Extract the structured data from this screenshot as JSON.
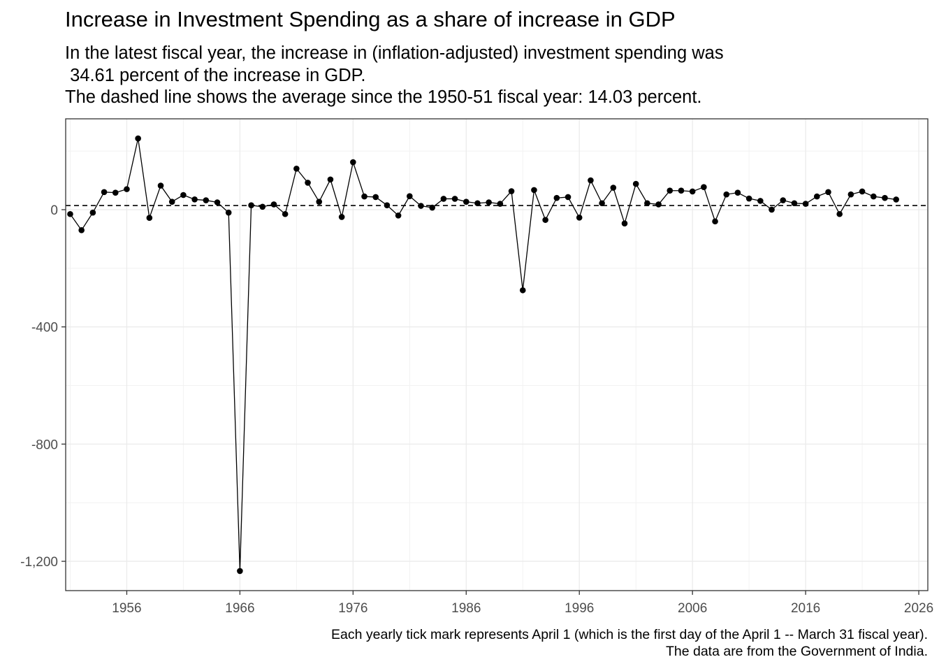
{
  "chart_data": {
    "type": "line",
    "title": "Increase in Investment Spending as a share of increase in GDP",
    "subtitle": "In the latest fiscal year, the increase in (inflation-adjusted) investment spending was\n 34.61 percent of the increase in GDP.\nThe dashed line shows the average since the 1950-51 fiscal year: 14.03 percent.",
    "caption": "Each yearly tick mark represents April 1 (which is the first day of the April 1 -- March 31 fiscal year).\nThe data are from the Government of India.",
    "xlabel": "",
    "ylabel": "",
    "x_ticks": [
      "1956",
      "1966",
      "1976",
      "1986",
      "1996",
      "2006",
      "2016",
      "2026"
    ],
    "y_ticks": [
      "-1,200",
      "-800",
      "-400",
      "0"
    ],
    "xlim": [
      1950.6,
      2026.8
    ],
    "ylim": [
      -1300,
      310
    ],
    "average_line": 14.03,
    "latest_value": 34.61,
    "grid": true,
    "series": [
      {
        "points": [
          [
            1951,
            -15
          ],
          [
            1952,
            -70
          ],
          [
            1953,
            -10
          ],
          [
            1954,
            60
          ],
          [
            1955,
            58
          ],
          [
            1956,
            70
          ],
          [
            1957,
            243
          ],
          [
            1958,
            -28
          ],
          [
            1959,
            82
          ],
          [
            1960,
            27
          ],
          [
            1961,
            50
          ],
          [
            1962,
            35
          ],
          [
            1963,
            32
          ],
          [
            1964,
            25
          ],
          [
            1965,
            -10
          ],
          [
            1966,
            -1233
          ],
          [
            1967,
            15
          ],
          [
            1968,
            10
          ],
          [
            1969,
            18
          ],
          [
            1970,
            -15
          ],
          [
            1971,
            140
          ],
          [
            1972,
            92
          ],
          [
            1973,
            27
          ],
          [
            1974,
            103
          ],
          [
            1975,
            -25
          ],
          [
            1976,
            162
          ],
          [
            1977,
            45
          ],
          [
            1978,
            43
          ],
          [
            1979,
            15
          ],
          [
            1980,
            -20
          ],
          [
            1981,
            46
          ],
          [
            1982,
            13
          ],
          [
            1983,
            7
          ],
          [
            1984,
            37
          ],
          [
            1985,
            37
          ],
          [
            1986,
            27
          ],
          [
            1987,
            22
          ],
          [
            1988,
            25
          ],
          [
            1989,
            20
          ],
          [
            1990,
            63
          ],
          [
            1991,
            -275
          ],
          [
            1992,
            67
          ],
          [
            1993,
            -35
          ],
          [
            1994,
            40
          ],
          [
            1995,
            43
          ],
          [
            1996,
            -27
          ],
          [
            1997,
            100
          ],
          [
            1998,
            22
          ],
          [
            1999,
            75
          ],
          [
            2000,
            -47
          ],
          [
            2001,
            88
          ],
          [
            2002,
            22
          ],
          [
            2003,
            18
          ],
          [
            2004,
            65
          ],
          [
            2005,
            65
          ],
          [
            2006,
            62
          ],
          [
            2007,
            77
          ],
          [
            2008,
            -40
          ],
          [
            2009,
            52
          ],
          [
            2010,
            58
          ],
          [
            2011,
            38
          ],
          [
            2012,
            30
          ],
          [
            2013,
            0
          ],
          [
            2014,
            32
          ],
          [
            2015,
            22
          ],
          [
            2016,
            20
          ],
          [
            2017,
            45
          ],
          [
            2018,
            60
          ],
          [
            2019,
            -15
          ],
          [
            2020,
            52
          ],
          [
            2021,
            62
          ],
          [
            2022,
            45
          ],
          [
            2023,
            40
          ],
          [
            2024,
            34.61
          ]
        ]
      }
    ]
  }
}
